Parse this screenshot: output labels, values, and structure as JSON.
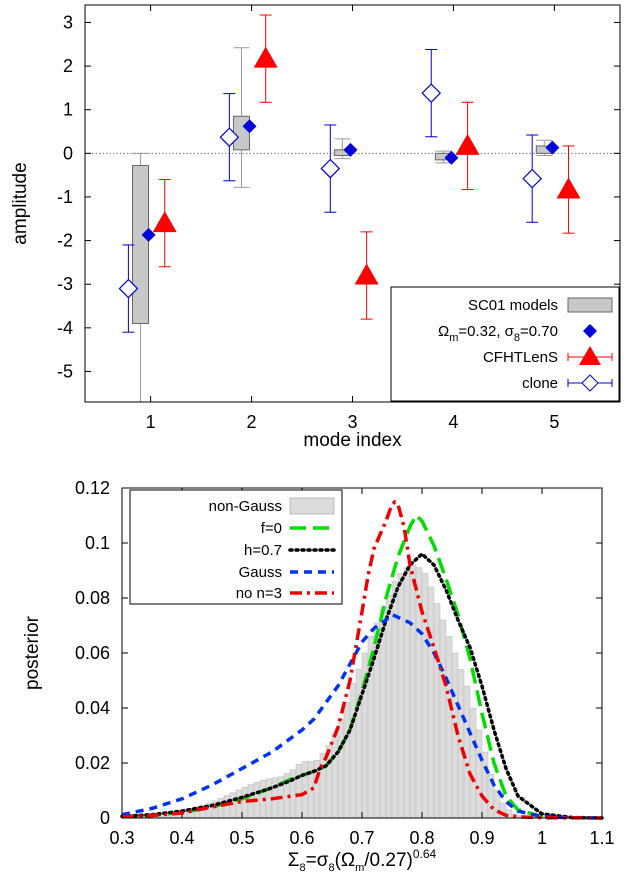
{
  "chart_data": [
    {
      "type": "scatter",
      "xlabel": "mode index",
      "ylabel": "amplitude",
      "xlim": [
        0.35,
        5.65
      ],
      "ylim": [
        -5.7,
        3.4
      ],
      "xticks": [
        "1",
        "2",
        "3",
        "4",
        "5"
      ],
      "yticks": [
        "3",
        "2",
        "1",
        "0",
        "-1",
        "-2",
        "-3",
        "-4",
        "-5"
      ],
      "zero_line": true,
      "legend_position": "bottom-right",
      "colors": {
        "models": "#c8c8c8",
        "fiducial": "#0000dd",
        "cfht": "#ff0000",
        "clone": "#0000cc"
      },
      "series": [
        {
          "name": "SC01 models",
          "kind": "box",
          "x": [
            1,
            2,
            3,
            4,
            5
          ],
          "q1": [
            -3.9,
            0.08,
            -0.05,
            -0.15,
            0.0
          ],
          "q3": [
            -0.28,
            0.85,
            0.08,
            0.0,
            0.17
          ],
          "lo": [
            -5.7,
            -0.78,
            -0.12,
            -0.22,
            -0.05
          ],
          "hi": [
            0.0,
            2.42,
            0.33,
            0.05,
            0.3
          ]
        },
        {
          "name": "Ωm=0.32, σ8=0.70",
          "kind": "diamond",
          "x": [
            1,
            2,
            3,
            4,
            5
          ],
          "y": [
            -1.87,
            0.62,
            0.08,
            -0.1,
            0.13
          ]
        },
        {
          "name": "CFHTLenS",
          "kind": "triangle",
          "x": [
            1,
            2,
            3,
            4,
            5
          ],
          "y": [
            -1.6,
            2.17,
            -2.8,
            0.17,
            -0.83
          ],
          "err_lo": [
            -2.6,
            1.17,
            -3.8,
            -0.83,
            -1.83
          ],
          "err_hi": [
            -0.6,
            3.17,
            -1.8,
            1.17,
            0.17
          ]
        },
        {
          "name": "clone",
          "kind": "open-diamond",
          "x": [
            1,
            2,
            3,
            4,
            5
          ],
          "y": [
            -3.1,
            0.37,
            -0.35,
            1.38,
            -0.58
          ],
          "err_lo": [
            -4.1,
            -0.63,
            -1.35,
            0.38,
            -1.58
          ],
          "err_hi": [
            -2.1,
            1.37,
            0.65,
            2.38,
            0.42
          ]
        }
      ]
    },
    {
      "type": "line",
      "xlabel": "Σ8=σ8(Ωm/0.27)^0.64",
      "ylabel": "posterior",
      "xlim": [
        0.3,
        1.1
      ],
      "ylim": [
        0,
        0.12
      ],
      "xticks": [
        "0.3",
        "0.4",
        "0.5",
        "0.6",
        "0.7",
        "0.8",
        "0.9",
        "1",
        "1.1"
      ],
      "yticks": [
        "0.12",
        "0.1",
        "0.08",
        "0.06",
        "0.04",
        "0.02",
        "0"
      ],
      "legend_position": "top-left",
      "histogram": {
        "name": "non-Gauss",
        "color": "#dcdcdc",
        "bin_width": 0.01,
        "x": [
          0.305,
          0.315,
          0.325,
          0.335,
          0.345,
          0.355,
          0.365,
          0.375,
          0.385,
          0.395,
          0.405,
          0.415,
          0.425,
          0.435,
          0.445,
          0.455,
          0.465,
          0.475,
          0.485,
          0.495,
          0.505,
          0.515,
          0.525,
          0.535,
          0.545,
          0.555,
          0.565,
          0.575,
          0.585,
          0.595,
          0.605,
          0.615,
          0.625,
          0.635,
          0.645,
          0.655,
          0.665,
          0.675,
          0.685,
          0.695,
          0.705,
          0.715,
          0.725,
          0.735,
          0.745,
          0.755,
          0.765,
          0.775,
          0.785,
          0.795,
          0.805,
          0.815,
          0.825,
          0.835,
          0.845,
          0.855,
          0.865,
          0.875,
          0.885,
          0.895,
          0.905,
          0.915,
          0.925,
          0.935,
          0.945,
          0.955,
          0.965,
          0.975,
          0.985,
          0.995,
          1.005,
          1.015,
          1.025,
          1.035,
          1.045,
          1.055,
          1.065,
          1.075,
          1.085,
          1.095
        ],
        "y": [
          0.0005,
          0.0008,
          0.001,
          0.0012,
          0.0014,
          0.0016,
          0.0018,
          0.002,
          0.0023,
          0.0026,
          0.003,
          0.0035,
          0.004,
          0.0046,
          0.0053,
          0.0062,
          0.0072,
          0.0082,
          0.0092,
          0.0102,
          0.0112,
          0.0122,
          0.013,
          0.0138,
          0.0143,
          0.0146,
          0.015,
          0.0162,
          0.0176,
          0.0195,
          0.0205,
          0.0206,
          0.021,
          0.0235,
          0.0265,
          0.0305,
          0.036,
          0.042,
          0.049,
          0.054,
          0.06,
          0.066,
          0.071,
          0.076,
          0.081,
          0.086,
          0.089,
          0.091,
          0.092,
          0.091,
          0.089,
          0.084,
          0.078,
          0.072,
          0.066,
          0.06,
          0.054,
          0.048,
          0.04,
          0.032,
          0.024,
          0.016,
          0.01,
          0.0055,
          0.003,
          0.0015,
          0.0008,
          0.0005,
          0.0003,
          0.0002,
          0.0001,
          0.0001,
          0,
          0,
          0,
          0,
          0,
          0,
          0,
          0
        ]
      },
      "series": [
        {
          "name": "f=0",
          "color": "#00dd00",
          "style": "long-dash",
          "x": [
            0.3,
            0.35,
            0.4,
            0.45,
            0.5,
            0.55,
            0.58,
            0.6,
            0.62,
            0.64,
            0.66,
            0.68,
            0.7,
            0.72,
            0.74,
            0.76,
            0.78,
            0.79,
            0.8,
            0.82,
            0.84,
            0.86,
            0.88,
            0.9,
            0.92,
            0.94,
            0.96,
            1.0,
            1.05,
            1.1
          ],
          "y": [
            0.0005,
            0.001,
            0.002,
            0.004,
            0.007,
            0.011,
            0.014,
            0.0155,
            0.017,
            0.019,
            0.024,
            0.032,
            0.046,
            0.062,
            0.08,
            0.095,
            0.106,
            0.11,
            0.108,
            0.099,
            0.087,
            0.074,
            0.058,
            0.038,
            0.02,
            0.008,
            0.003,
            0.0005,
            0.0001,
            0
          ]
        },
        {
          "name": "h=0.7",
          "color": "#000000",
          "style": "dotted",
          "x": [
            0.3,
            0.35,
            0.4,
            0.45,
            0.5,
            0.55,
            0.58,
            0.6,
            0.62,
            0.64,
            0.66,
            0.68,
            0.7,
            0.72,
            0.74,
            0.76,
            0.78,
            0.79,
            0.8,
            0.82,
            0.84,
            0.86,
            0.88,
            0.9,
            0.92,
            0.94,
            0.96,
            1.0,
            1.05,
            1.1
          ],
          "y": [
            0.0006,
            0.0012,
            0.0025,
            0.0045,
            0.0075,
            0.011,
            0.0135,
            0.0155,
            0.017,
            0.019,
            0.024,
            0.032,
            0.045,
            0.058,
            0.072,
            0.084,
            0.092,
            0.094,
            0.096,
            0.092,
            0.083,
            0.072,
            0.062,
            0.048,
            0.032,
            0.018,
            0.008,
            0.0015,
            0.0002,
            0
          ]
        },
        {
          "name": "Gauss",
          "color": "#0033ee",
          "style": "dashed",
          "x": [
            0.3,
            0.35,
            0.4,
            0.45,
            0.5,
            0.55,
            0.6,
            0.62,
            0.64,
            0.66,
            0.68,
            0.7,
            0.72,
            0.74,
            0.75,
            0.76,
            0.78,
            0.8,
            0.82,
            0.84,
            0.86,
            0.88,
            0.9,
            0.92,
            0.94,
            0.96,
            1.0,
            1.05,
            1.1
          ],
          "y": [
            0.0012,
            0.0035,
            0.007,
            0.012,
            0.018,
            0.024,
            0.032,
            0.036,
            0.042,
            0.048,
            0.056,
            0.064,
            0.069,
            0.072,
            0.074,
            0.073,
            0.071,
            0.067,
            0.06,
            0.051,
            0.041,
            0.031,
            0.021,
            0.012,
            0.006,
            0.0025,
            0.0005,
            0.0001,
            0
          ]
        },
        {
          "name": "no n=3",
          "color": "#ee0000",
          "style": "dash-dot",
          "x": [
            0.3,
            0.35,
            0.4,
            0.45,
            0.5,
            0.55,
            0.6,
            0.62,
            0.63,
            0.64,
            0.66,
            0.68,
            0.7,
            0.71,
            0.72,
            0.74,
            0.75,
            0.755,
            0.76,
            0.77,
            0.78,
            0.8,
            0.82,
            0.84,
            0.86,
            0.88,
            0.9,
            0.92,
            0.94,
            0.96,
            1.0,
            1.1
          ],
          "y": [
            0.0004,
            0.0009,
            0.0018,
            0.004,
            0.006,
            0.007,
            0.0085,
            0.011,
            0.018,
            0.022,
            0.033,
            0.05,
            0.075,
            0.088,
            0.098,
            0.108,
            0.114,
            0.115,
            0.114,
            0.106,
            0.092,
            0.075,
            0.062,
            0.048,
            0.03,
            0.016,
            0.008,
            0.003,
            0.001,
            0.0004,
            0.0001,
            0
          ]
        }
      ]
    }
  ]
}
